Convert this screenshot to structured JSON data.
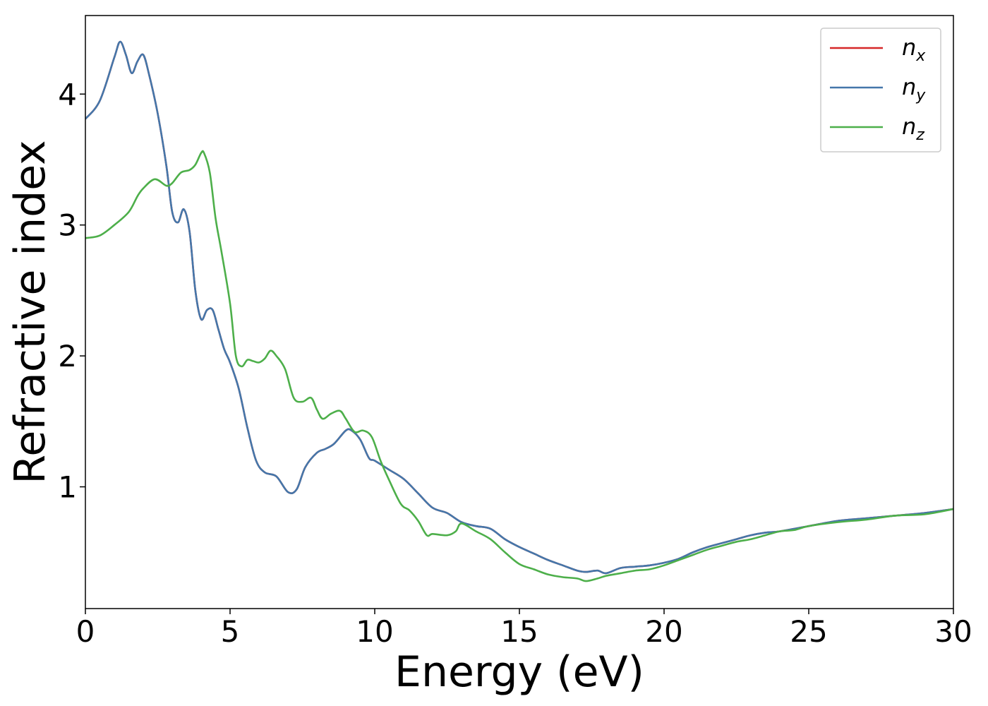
{
  "chart_data": {
    "type": "line",
    "title": "",
    "xlabel": "Energy (eV)",
    "ylabel": "Refractive index",
    "xlim": [
      0,
      30
    ],
    "ylim": [
      0.07,
      4.6
    ],
    "xticks": [
      0,
      5,
      10,
      15,
      20,
      25,
      30
    ],
    "xtick_labels": [
      "0",
      "5",
      "10",
      "15",
      "20",
      "25",
      "30"
    ],
    "yticks": [
      1,
      2,
      3,
      4
    ],
    "ytick_labels": [
      "1",
      "2",
      "3",
      "4"
    ],
    "grid": false,
    "legend_placement": "top-right",
    "series": [
      {
        "name": "n_x",
        "base": "n",
        "sub": "x",
        "color": "#d62728",
        "x": [
          0,
          0.5,
          1.0,
          1.2,
          1.4,
          1.6,
          1.8,
          2.0,
          2.2,
          2.5,
          2.8,
          3.0,
          3.2,
          3.4,
          3.6,
          3.8,
          4.0,
          4.2,
          4.4,
          4.6,
          4.8,
          5.0,
          5.3,
          5.6,
          5.9,
          6.2,
          6.6,
          7.0,
          7.3,
          7.6,
          8.0,
          8.3,
          8.6,
          9.0,
          9.2,
          9.5,
          9.8,
          10.0,
          10.5,
          11.0,
          11.5,
          12.0,
          12.5,
          13.0,
          13.5,
          14.0,
          14.5,
          15.0,
          15.5,
          16.0,
          16.5,
          17.0,
          17.3,
          17.7,
          18.0,
          18.5,
          19.0,
          19.5,
          20.0,
          20.5,
          21.0,
          21.5,
          22.0,
          22.5,
          23.0,
          23.5,
          24.0,
          25.0,
          26.0,
          27.0,
          28.0,
          29.0,
          30.0
        ],
        "y": [
          3.81,
          3.95,
          4.28,
          4.4,
          4.3,
          4.16,
          4.25,
          4.3,
          4.15,
          3.85,
          3.45,
          3.1,
          3.02,
          3.12,
          2.95,
          2.5,
          2.28,
          2.35,
          2.35,
          2.2,
          2.05,
          1.95,
          1.75,
          1.45,
          1.2,
          1.11,
          1.08,
          0.96,
          0.98,
          1.15,
          1.26,
          1.29,
          1.33,
          1.43,
          1.43,
          1.36,
          1.22,
          1.2,
          1.13,
          1.06,
          0.95,
          0.84,
          0.8,
          0.73,
          0.7,
          0.68,
          0.6,
          0.54,
          0.49,
          0.44,
          0.4,
          0.36,
          0.35,
          0.36,
          0.34,
          0.38,
          0.39,
          0.4,
          0.42,
          0.45,
          0.5,
          0.54,
          0.57,
          0.6,
          0.63,
          0.65,
          0.66,
          0.7,
          0.74,
          0.76,
          0.78,
          0.8,
          0.83
        ]
      },
      {
        "name": "n_y",
        "base": "n",
        "sub": "y",
        "color": "#4477aa",
        "x": [
          0,
          0.5,
          1.0,
          1.2,
          1.4,
          1.6,
          1.8,
          2.0,
          2.2,
          2.5,
          2.8,
          3.0,
          3.2,
          3.4,
          3.6,
          3.8,
          4.0,
          4.2,
          4.4,
          4.6,
          4.8,
          5.0,
          5.3,
          5.6,
          5.9,
          6.2,
          6.6,
          7.0,
          7.3,
          7.6,
          8.0,
          8.3,
          8.6,
          9.0,
          9.2,
          9.5,
          9.8,
          10.0,
          10.5,
          11.0,
          11.5,
          12.0,
          12.5,
          13.0,
          13.5,
          14.0,
          14.5,
          15.0,
          15.5,
          16.0,
          16.5,
          17.0,
          17.3,
          17.7,
          18.0,
          18.5,
          19.0,
          19.5,
          20.0,
          20.5,
          21.0,
          21.5,
          22.0,
          22.5,
          23.0,
          23.5,
          24.0,
          25.0,
          26.0,
          27.0,
          28.0,
          29.0,
          30.0
        ],
        "y": [
          3.81,
          3.95,
          4.28,
          4.4,
          4.3,
          4.16,
          4.25,
          4.3,
          4.15,
          3.85,
          3.45,
          3.1,
          3.02,
          3.12,
          2.95,
          2.5,
          2.28,
          2.35,
          2.35,
          2.2,
          2.05,
          1.95,
          1.75,
          1.45,
          1.2,
          1.11,
          1.08,
          0.96,
          0.98,
          1.15,
          1.26,
          1.29,
          1.33,
          1.43,
          1.43,
          1.36,
          1.22,
          1.2,
          1.13,
          1.06,
          0.95,
          0.84,
          0.8,
          0.73,
          0.7,
          0.68,
          0.6,
          0.54,
          0.49,
          0.44,
          0.4,
          0.36,
          0.35,
          0.36,
          0.34,
          0.38,
          0.39,
          0.4,
          0.42,
          0.45,
          0.5,
          0.54,
          0.57,
          0.6,
          0.63,
          0.65,
          0.66,
          0.7,
          0.74,
          0.76,
          0.78,
          0.8,
          0.83
        ]
      },
      {
        "name": "n_z",
        "base": "n",
        "sub": "z",
        "color": "#4daf4a",
        "x": [
          0,
          0.5,
          1.0,
          1.5,
          1.8,
          2.0,
          2.4,
          2.8,
          3.0,
          3.3,
          3.6,
          3.8,
          4.0,
          4.1,
          4.3,
          4.5,
          4.7,
          5.0,
          5.2,
          5.4,
          5.6,
          5.8,
          6.0,
          6.2,
          6.4,
          6.6,
          6.9,
          7.2,
          7.5,
          7.8,
          8.0,
          8.2,
          8.5,
          8.8,
          9.0,
          9.3,
          9.6,
          9.9,
          10.2,
          10.5,
          10.9,
          11.2,
          11.5,
          11.8,
          12.0,
          12.5,
          12.8,
          13.0,
          13.5,
          14.0,
          14.5,
          15.0,
          15.5,
          16.0,
          16.5,
          17.0,
          17.3,
          17.7,
          18.0,
          18.5,
          19.0,
          19.5,
          20.0,
          20.5,
          21.0,
          21.5,
          22.0,
          22.5,
          23.0,
          23.5,
          24.0,
          24.5,
          25.0,
          26.0,
          27.0,
          28.0,
          29.0,
          30.0
        ],
        "y": [
          2.9,
          2.92,
          3.0,
          3.1,
          3.22,
          3.28,
          3.35,
          3.3,
          3.32,
          3.4,
          3.42,
          3.46,
          3.55,
          3.55,
          3.4,
          3.05,
          2.8,
          2.4,
          2.0,
          1.92,
          1.97,
          1.96,
          1.95,
          1.98,
          2.04,
          2.0,
          1.9,
          1.68,
          1.65,
          1.68,
          1.59,
          1.52,
          1.56,
          1.58,
          1.52,
          1.42,
          1.43,
          1.38,
          1.2,
          1.05,
          0.87,
          0.82,
          0.74,
          0.63,
          0.64,
          0.63,
          0.66,
          0.72,
          0.66,
          0.6,
          0.5,
          0.41,
          0.37,
          0.33,
          0.31,
          0.3,
          0.28,
          0.3,
          0.32,
          0.34,
          0.36,
          0.37,
          0.4,
          0.44,
          0.48,
          0.52,
          0.55,
          0.58,
          0.6,
          0.63,
          0.66,
          0.67,
          0.7,
          0.73,
          0.75,
          0.78,
          0.79,
          0.83
        ]
      }
    ]
  }
}
